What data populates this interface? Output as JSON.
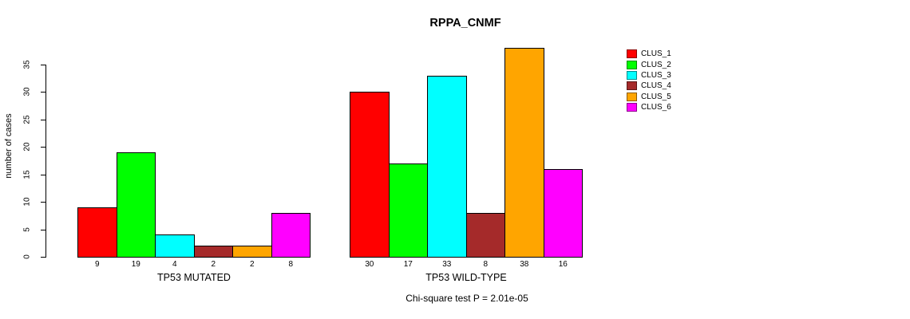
{
  "chart_data": {
    "type": "bar",
    "title": "RPPA_CNMF",
    "ylabel": "number of cases",
    "ylim": [
      0,
      38
    ],
    "yticks": [
      0,
      5,
      10,
      15,
      20,
      25,
      30,
      35
    ],
    "grid": false,
    "categories": [
      "CLUS_1",
      "CLUS_2",
      "CLUS_3",
      "CLUS_4",
      "CLUS_5",
      "CLUS_6"
    ],
    "colors": [
      "#FF0000",
      "#00FF00",
      "#00FFFF",
      "#A52A2A",
      "#FFA500",
      "#FF00FF"
    ],
    "groups": [
      {
        "label": "TP53 MUTATED",
        "values": [
          9,
          19,
          4,
          2,
          2,
          8
        ]
      },
      {
        "label": "TP53 WILD-TYPE",
        "values": [
          30,
          17,
          33,
          8,
          38,
          16
        ]
      }
    ],
    "legend": {
      "position": "right",
      "entries": [
        "CLUS_1",
        "CLUS_2",
        "CLUS_3",
        "CLUS_4",
        "CLUS_5",
        "CLUS_6"
      ]
    },
    "annotation": "Chi-square test P = 2.01e-05",
    "bar_value_labels_shown": true
  }
}
